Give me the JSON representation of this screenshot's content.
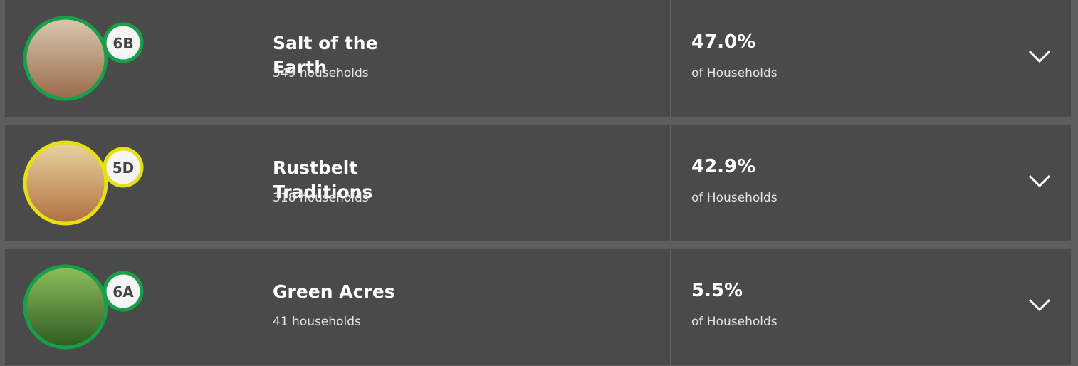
{
  "segments": [
    {
      "code": "6B",
      "name": "Salt of the Earth",
      "households": "349 households",
      "percent": "47.0%",
      "percent_label": "of Households",
      "ring_color": "#17a04a"
    },
    {
      "code": "5D",
      "name": "Rustbelt Traditions",
      "households": "318 households",
      "percent": "42.9%",
      "percent_label": "of Households",
      "ring_color": "#e6df12"
    },
    {
      "code": "6A",
      "name": "Green Acres",
      "households": "41 households",
      "percent": "5.5%",
      "percent_label": "of Households",
      "ring_color": "#17a04a"
    }
  ]
}
